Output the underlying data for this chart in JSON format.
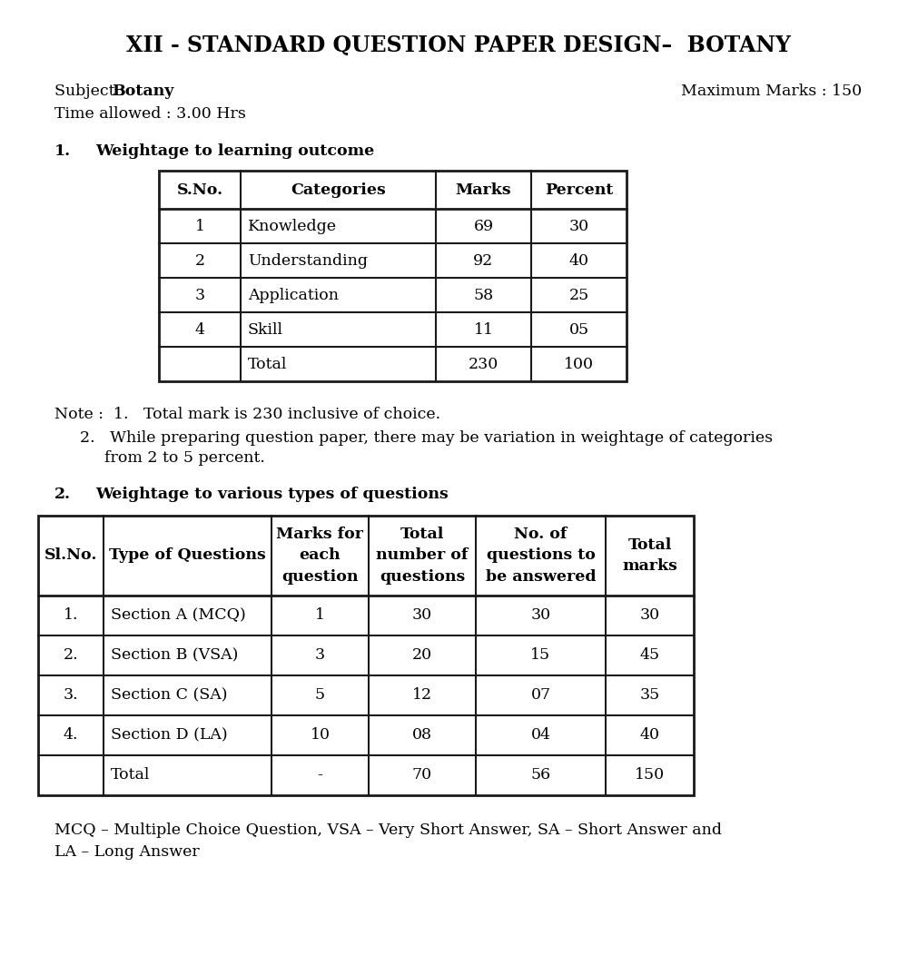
{
  "title": "XII - STANDARD QUESTION PAPER DESIGN–  BOTANY",
  "subject_label": "Subject : ",
  "subject_value": "Botany",
  "max_marks_label": "Maximum Marks : 150",
  "time_label": "Time allowed : 3.00 Hrs",
  "section1_heading_num": "1.",
  "section1_heading_text": "Weightage to learning outcome",
  "table1_headers": [
    "S.No.",
    "Categories",
    "Marks",
    "Percent"
  ],
  "table1_rows": [
    [
      "1",
      "Knowledge",
      "69",
      "30"
    ],
    [
      "2",
      "Understanding",
      "92",
      "40"
    ],
    [
      "3",
      "Application",
      "58",
      "25"
    ],
    [
      "4",
      "Skill",
      "11",
      "05"
    ],
    [
      "",
      "Total",
      "230",
      "100"
    ]
  ],
  "note1": "Note :  1.   Total mark is 230 inclusive of choice.",
  "note2_line1": "         2.   While preparing question paper, there may be variation in weightage of categories",
  "note2_line2": "               from 2 to 5 percent.",
  "section2_heading_num": "2.",
  "section2_heading_text": "Weightage to various types of questions",
  "table2_headers": [
    "Sl.No.",
    "Type of Questions",
    "Marks for\neach\nquestion",
    "Total\nnumber of\nquestions",
    "No. of\nquestions to\nbe answered",
    "Total\nmarks"
  ],
  "table2_rows": [
    [
      "1.",
      "Section A (MCQ)",
      "1",
      "30",
      "30",
      "30"
    ],
    [
      "2.",
      "Section B (VSA)",
      "3",
      "20",
      "15",
      "45"
    ],
    [
      "3.",
      "Section C (SA)",
      "5",
      "12",
      "07",
      "35"
    ],
    [
      "4.",
      "Section D (LA)",
      "10",
      "08",
      "04",
      "40"
    ],
    [
      "",
      "Total",
      "-",
      "70",
      "56",
      "150"
    ]
  ],
  "footer_line1": "MCQ – Multiple Choice Question, VSA – Very Short Answer, SA – Short Answer and",
  "footer_line2": "LA – Long Answer",
  "bg_color": "#ffffff",
  "text_color": "#1a1a1a",
  "border_color": "#1a1a1a",
  "title_fontsize": 17,
  "body_fontsize": 12.5,
  "heading_fontsize": 12.5
}
